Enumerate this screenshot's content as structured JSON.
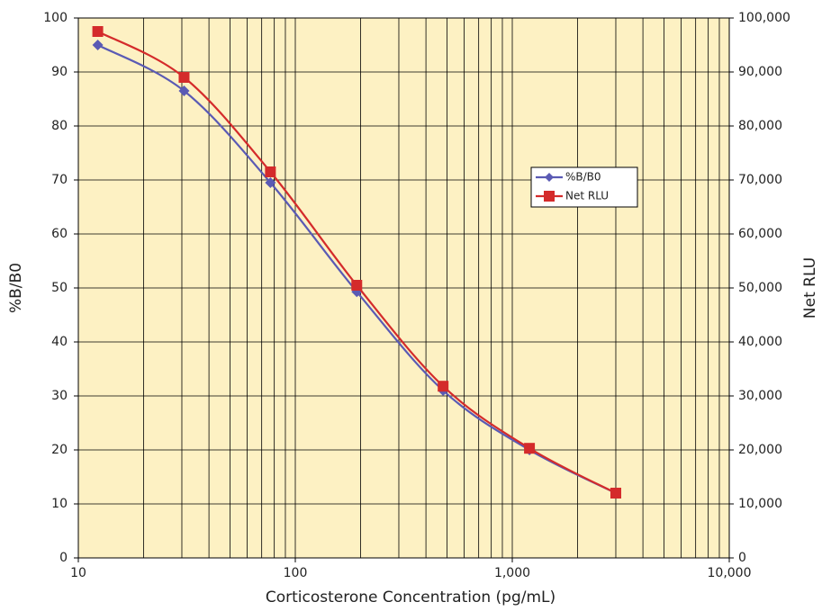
{
  "chart_data": {
    "type": "line",
    "x_label": "Corticosterone Concentration (pg/mL)",
    "y_label": "%B/B0",
    "y2_label": "Net RLU",
    "x": [
      12.29,
      30.72,
      76.8,
      192,
      480,
      1200,
      3000
    ],
    "xlog": true,
    "xlim": [
      10,
      10000
    ],
    "xticks": [
      10,
      100,
      {
        "value": 1000,
        "label": "1,000"
      },
      {
        "value": 10000,
        "label": "10,000"
      }
    ],
    "ylim": [
      0,
      100
    ],
    "yticks": [
      0,
      10,
      20,
      30,
      40,
      50,
      60,
      70,
      80,
      90,
      100
    ],
    "y2lim": [
      0,
      100000
    ],
    "y2ticks": [
      0,
      {
        "value": 10000,
        "label": "10,000"
      },
      {
        "value": 20000,
        "label": "20,000"
      },
      {
        "value": 30000,
        "label": "30,000"
      },
      {
        "value": 40000,
        "label": "40,000"
      },
      {
        "value": 50000,
        "label": "50,000"
      },
      {
        "value": 60000,
        "label": "60,000"
      },
      {
        "value": 70000,
        "label": "70,000"
      },
      {
        "value": 80000,
        "label": "80,000"
      },
      {
        "value": 90000,
        "label": "90,000"
      },
      {
        "value": 100000,
        "label": "100,000"
      }
    ],
    "grid": true,
    "background": "#fdf1c3",
    "series": [
      {
        "name": "%B/B0",
        "color": "#5a5ab4",
        "marker": "diamond",
        "values": [
          95,
          86.5,
          69.5,
          49.3,
          31,
          20,
          12
        ]
      },
      {
        "name": "Net RLU",
        "color": "#d42b2b",
        "marker": "square",
        "axis": "y2",
        "values": [
          97500,
          89000,
          71500,
          50500,
          31800,
          20300,
          12000
        ]
      }
    ]
  }
}
